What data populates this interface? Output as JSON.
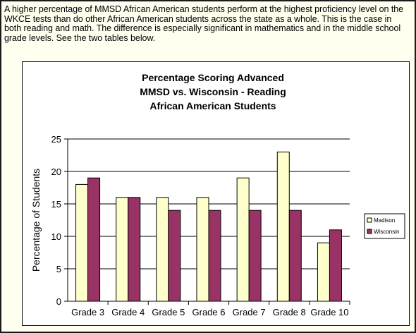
{
  "intro_text": "A higher percentage of MMSD African American students perform at the highest proficiency level on the WKCE tests than do other African American students across the state as a whole. This is the case in both reading and math. The difference is especially significant in mathematics and in the middle school grade levels. See the two tables below.",
  "colors": {
    "madison": "#ffffcc",
    "wisconsin": "#993366",
    "page_bg": "#fffff0"
  },
  "chart_data": {
    "type": "bar",
    "title_lines": [
      "Percentage Scoring Advanced",
      "MMSD vs. Wisconsin - Reading",
      "African American Students"
    ],
    "xlabel": "",
    "ylabel": "Percentage of Students",
    "ylim": [
      0,
      25
    ],
    "yticks": [
      0,
      5,
      10,
      15,
      20,
      25
    ],
    "grid": true,
    "legend_position": "right",
    "categories": [
      "Grade 3",
      "Grade 4",
      "Grade 5",
      "Grade 6",
      "Grade 7",
      "Grade 8",
      "Grade 10"
    ],
    "series": [
      {
        "name": "Madison",
        "color": "#ffffcc",
        "values": [
          18,
          16,
          16,
          16,
          19,
          23,
          9
        ]
      },
      {
        "name": "Wisconsin",
        "color": "#993366",
        "values": [
          19,
          16,
          14,
          14,
          14,
          14,
          11
        ]
      }
    ]
  }
}
